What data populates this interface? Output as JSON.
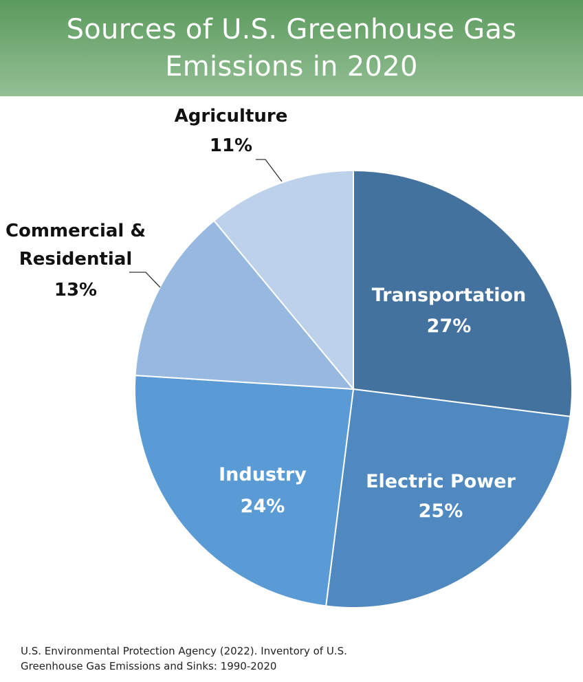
{
  "header": {
    "title_line1": "Sources of U.S. Greenhouse Gas",
    "title_line2": "Emissions in 2020"
  },
  "source": {
    "line1": "U.S. Environmental Protection Agency (2022). Inventory of U.S.",
    "line2": "Greenhouse Gas Emissions and Sinks: 1990-2020"
  },
  "colors": {
    "header_green": "#5a9a5c",
    "inside_label": "#ffffff",
    "outside_label": "#111111"
  },
  "chart_data": {
    "type": "pie",
    "title": "Sources of U.S. Greenhouse Gas Emissions in 2020",
    "start": "12 o'clock",
    "direction": "clockwise",
    "slices": [
      {
        "id": "transportation",
        "label": "Transportation",
        "value": 27,
        "value_label": "27%",
        "color": "#44729f",
        "label_position": "inside"
      },
      {
        "id": "electric-power",
        "label": "Electric Power",
        "value": 25,
        "value_label": "25%",
        "color": "#4f89bf",
        "label_position": "inside"
      },
      {
        "id": "industry",
        "label": "Industry",
        "value": 24,
        "value_label": "24%",
        "color": "#5b9bd5",
        "label_position": "inside"
      },
      {
        "id": "commercial-residential",
        "label": "Commercial & Residential",
        "label_lines": [
          "Commercial &",
          "Residential"
        ],
        "value": 13,
        "value_label": "13%",
        "color": "#97b9e0",
        "label_position": "outside"
      },
      {
        "id": "agriculture",
        "label": "Agriculture",
        "value": 11,
        "value_label": "11%",
        "color": "#bdd1ea",
        "label_position": "outside"
      }
    ]
  }
}
